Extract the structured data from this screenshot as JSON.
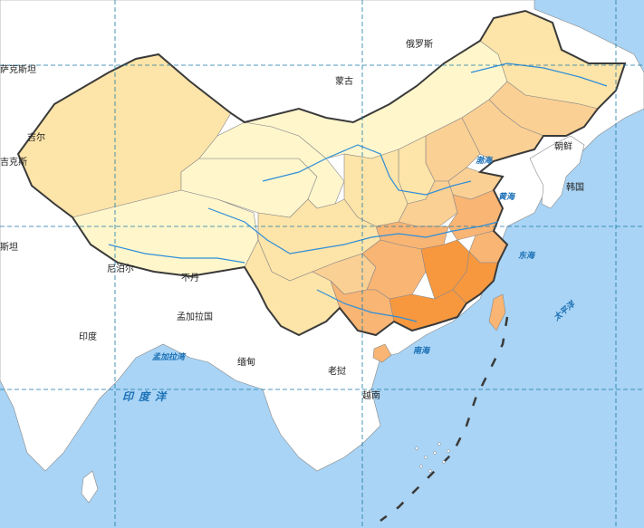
{
  "map": {
    "colors": {
      "sea": "#a9d4f5",
      "land_other": "#ffffff",
      "level_1": "#fff6cc",
      "level_2": "#fde4a8",
      "level_3": "#fbd094",
      "level_4": "#f9b574",
      "level_5": "#f7983f",
      "national_border": "#3a3a3a",
      "graticule": "#1a7aa6",
      "river": "#2f8ed8"
    },
    "countries": {
      "kazakhstan": "萨克斯坦",
      "russia": "俄罗斯",
      "mongolia": "蒙古",
      "kyrgyzstan": "吉尔",
      "tajikistan": "吉克斯",
      "pakistan": "斯坦",
      "nepal": "尼泊尔",
      "bhutan": "不丹",
      "bangladesh": "孟加拉国",
      "india": "印度",
      "myanmar": "缅甸",
      "laos": "老挝",
      "vietnam": "越南",
      "north_korea": "朝鲜",
      "south_korea": "韩国"
    },
    "seas": {
      "bohai": "渤海",
      "yellow_sea": "黄海",
      "east_china_sea": "东海",
      "south_china_sea": "南海",
      "bay_of_bengal": "孟加拉湾",
      "pacific": "太平洋",
      "indian_ocean": "印度洋"
    }
  }
}
